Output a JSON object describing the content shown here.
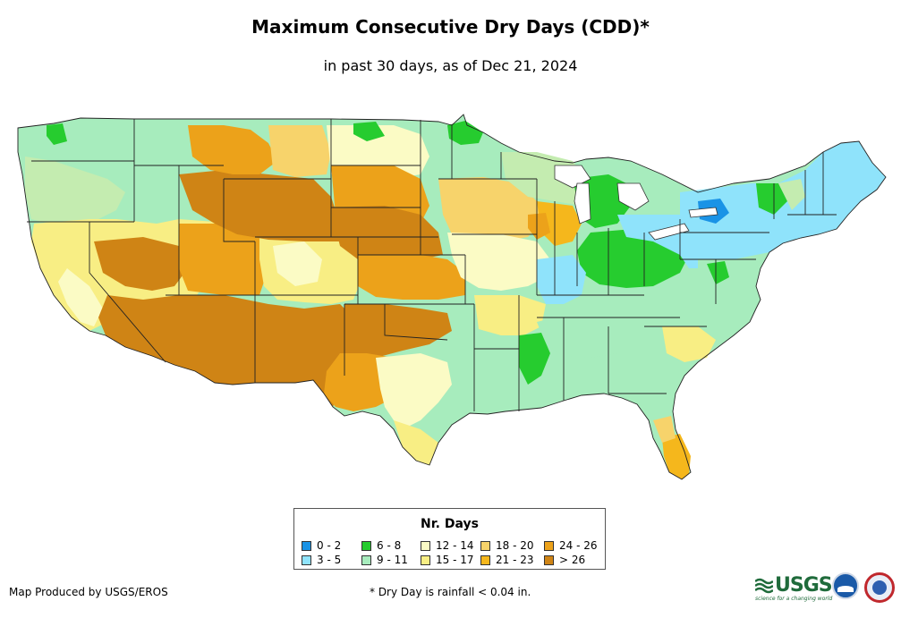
{
  "map": {
    "title": "Maximum Consecutive Dry Days (CDD)*",
    "subtitle": "in past 30 days, as of Dec 21, 2024",
    "region": "Contiguous United States"
  },
  "legend": {
    "title": "Nr. Days",
    "items": [
      {
        "label": "0 - 2",
        "color": "#1a93e6"
      },
      {
        "label": "3 - 5",
        "color": "#8fe3fb"
      },
      {
        "label": "6 - 8",
        "color": "#26cc2f"
      },
      {
        "label": "9 - 11",
        "color": "#a7ecbd"
      },
      {
        "label": "12 - 14",
        "color": "#fbfbc5"
      },
      {
        "label": "15 - 17",
        "color": "#f8ee84"
      },
      {
        "label": "18 - 20",
        "color": "#f7d36b"
      },
      {
        "label": "21 - 23",
        "color": "#f5b71c"
      },
      {
        "label": "24 - 26",
        "color": "#eca21a"
      },
      {
        "label": "> 26",
        "color": "#cf8415"
      }
    ]
  },
  "footer": {
    "producer": "Map Produced by USGS/EROS",
    "note": "* Dry Day is rainfall < 0.04 in."
  },
  "logos": {
    "usgs": "USGS",
    "usgs_tagline": "science for a changing world",
    "noaa": "noaa-logo",
    "nws": "nws-logo"
  }
}
